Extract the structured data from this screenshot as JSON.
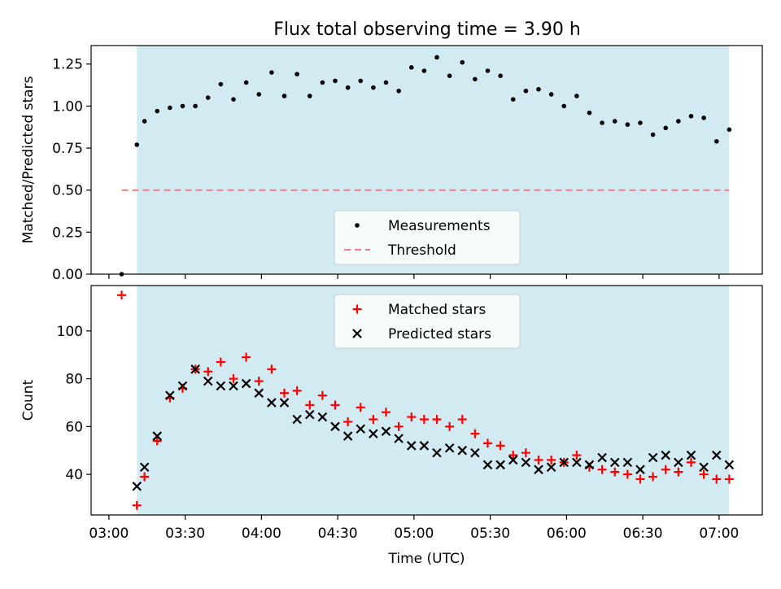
{
  "figure": {
    "title": "Flux total observing time = 3.90 h"
  },
  "chart_data": [
    {
      "type": "scatter",
      "panel": "top",
      "ylabel": "Matched/Predicted stars",
      "xlabel": "",
      "xlim": [
        "02:53",
        "07:17"
      ],
      "ylim": [
        0,
        1.36
      ],
      "yticks": [
        "0.00",
        "0.25",
        "0.50",
        "0.75",
        "1.00",
        "1.25"
      ],
      "ytick_values": [
        0,
        0.25,
        0.5,
        0.75,
        1.0,
        1.25
      ],
      "shaded_region": {
        "start": "03:11",
        "end": "07:04",
        "color": "#add8e6"
      },
      "threshold": {
        "value": 0.5,
        "start": "03:05",
        "end": "07:04",
        "color": "#f08080",
        "style": "dashed"
      },
      "legend": {
        "placement": "bottom-center",
        "entries": [
          "Measurements",
          "Threshold"
        ]
      },
      "series": [
        {
          "name": "Measurements",
          "color": "#000000",
          "marker": "dot",
          "x": [
            "03:05",
            "03:11",
            "03:14",
            "03:19",
            "03:24",
            "03:29",
            "03:34",
            "03:39",
            "03:44",
            "03:49",
            "03:54",
            "03:59",
            "04:04",
            "04:09",
            "04:14",
            "04:19",
            "04:24",
            "04:29",
            "04:34",
            "04:39",
            "04:44",
            "04:49",
            "04:54",
            "04:59",
            "05:04",
            "05:09",
            "05:14",
            "05:19",
            "05:24",
            "05:29",
            "05:34",
            "05:39",
            "05:44",
            "05:49",
            "05:54",
            "05:59",
            "06:04",
            "06:09",
            "06:14",
            "06:19",
            "06:24",
            "06:29",
            "06:34",
            "06:39",
            "06:44",
            "06:49",
            "06:54",
            "06:59",
            "07:04"
          ],
          "values": [
            0.0,
            0.77,
            0.91,
            0.97,
            0.99,
            1.0,
            1.0,
            1.05,
            1.13,
            1.04,
            1.14,
            1.07,
            1.2,
            1.06,
            1.19,
            1.06,
            1.14,
            1.15,
            1.11,
            1.15,
            1.11,
            1.14,
            1.09,
            1.23,
            1.21,
            1.29,
            1.18,
            1.26,
            1.16,
            1.21,
            1.18,
            1.04,
            1.09,
            1.1,
            1.07,
            1.0,
            1.06,
            0.96,
            0.9,
            0.91,
            0.89,
            0.9,
            0.83,
            0.87,
            0.91,
            0.94,
            0.93,
            0.79,
            0.86
          ]
        }
      ]
    },
    {
      "type": "scatter",
      "panel": "bottom",
      "ylabel": "Count",
      "xlabel": "Time (UTC)",
      "xlim": [
        "02:53",
        "07:17"
      ],
      "ylim": [
        23,
        119
      ],
      "yticks": [
        "40",
        "60",
        "80",
        "100"
      ],
      "ytick_values": [
        40,
        60,
        80,
        100
      ],
      "xticks": [
        "03:00",
        "03:30",
        "04:00",
        "04:30",
        "05:00",
        "05:30",
        "06:00",
        "06:30",
        "07:00"
      ],
      "shaded_region": {
        "start": "03:11",
        "end": "07:04",
        "color": "#add8e6"
      },
      "legend": {
        "placement": "top-center",
        "entries": [
          "Matched stars",
          "Predicted stars"
        ]
      },
      "x": [
        "03:05",
        "03:11",
        "03:14",
        "03:19",
        "03:24",
        "03:29",
        "03:34",
        "03:39",
        "03:44",
        "03:49",
        "03:54",
        "03:59",
        "04:04",
        "04:09",
        "04:14",
        "04:19",
        "04:24",
        "04:29",
        "04:34",
        "04:39",
        "04:44",
        "04:49",
        "04:54",
        "04:59",
        "05:04",
        "05:09",
        "05:14",
        "05:19",
        "05:24",
        "05:29",
        "05:34",
        "05:39",
        "05:44",
        "05:49",
        "05:54",
        "05:59",
        "06:04",
        "06:09",
        "06:14",
        "06:19",
        "06:24",
        "06:29",
        "06:34",
        "06:39",
        "06:44",
        "06:49",
        "06:54",
        "06:59",
        "07:04"
      ],
      "series": [
        {
          "name": "Matched stars",
          "color": "#ff0000",
          "marker": "plus",
          "values": [
            115,
            27,
            39,
            54,
            72,
            76,
            84,
            83,
            87,
            80,
            89,
            79,
            84,
            74,
            75,
            69,
            73,
            69,
            62,
            68,
            63,
            66,
            60,
            64,
            63,
            63,
            60,
            63,
            57,
            53,
            52,
            48,
            49,
            46,
            46,
            45,
            48,
            43,
            42,
            41,
            40,
            38,
            39,
            42,
            41,
            45,
            40,
            38,
            38
          ]
        },
        {
          "name": "Predicted stars",
          "color": "#000000",
          "marker": "x",
          "x": [
            "03:11",
            "03:14",
            "03:19",
            "03:24",
            "03:29",
            "03:34",
            "03:39",
            "03:44",
            "03:49",
            "03:54",
            "03:59",
            "04:04",
            "04:09",
            "04:14",
            "04:19",
            "04:24",
            "04:29",
            "04:34",
            "04:39",
            "04:44",
            "04:49",
            "04:54",
            "04:59",
            "05:04",
            "05:09",
            "05:14",
            "05:19",
            "05:24",
            "05:29",
            "05:34",
            "05:39",
            "05:44",
            "05:49",
            "05:54",
            "05:59",
            "06:04",
            "06:09",
            "06:14",
            "06:19",
            "06:24",
            "06:29",
            "06:34",
            "06:39",
            "06:44",
            "06:49",
            "06:54",
            "06:59",
            "07:04"
          ],
          "values": [
            35,
            43,
            56,
            73,
            77,
            84,
            79,
            77,
            77,
            78,
            74,
            70,
            70,
            63,
            65,
            64,
            60,
            56,
            59,
            57,
            58,
            55,
            52,
            52,
            49,
            51,
            50,
            49,
            44,
            44,
            46,
            45,
            42,
            43,
            45,
            45,
            44,
            47,
            45,
            45,
            42,
            47,
            48,
            45,
            48,
            43,
            48,
            44
          ]
        }
      ]
    }
  ]
}
